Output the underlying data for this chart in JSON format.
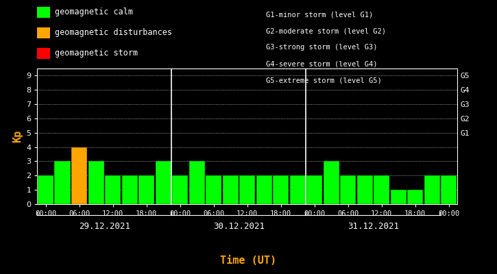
{
  "background_color": "#000000",
  "plot_bg_color": "#000000",
  "bar_values": [
    2,
    3,
    4,
    3,
    2,
    2,
    2,
    3,
    2,
    3,
    2,
    2,
    2,
    2,
    2,
    2,
    2,
    3,
    2,
    2,
    2,
    1,
    1,
    2,
    2
  ],
  "bar_colors": [
    "#00ff00",
    "#00ff00",
    "#ffa500",
    "#00ff00",
    "#00ff00",
    "#00ff00",
    "#00ff00",
    "#00ff00",
    "#00ff00",
    "#00ff00",
    "#00ff00",
    "#00ff00",
    "#00ff00",
    "#00ff00",
    "#00ff00",
    "#00ff00",
    "#00ff00",
    "#00ff00",
    "#00ff00",
    "#00ff00",
    "#00ff00",
    "#00ff00",
    "#00ff00",
    "#00ff00",
    "#00ff00"
  ],
  "ylim": [
    0,
    9.5
  ],
  "yticks": [
    0,
    1,
    2,
    3,
    4,
    5,
    6,
    7,
    8,
    9
  ],
  "ylabel": "Kp",
  "ylabel_color": "#ffa500",
  "xlabel": "Time (UT)",
  "xlabel_color": "#ffa500",
  "grid_color": "#ffffff",
  "tick_color": "#ffffff",
  "text_color": "#ffffff",
  "day_labels": [
    "29.12.2021",
    "30.12.2021",
    "31.12.2021"
  ],
  "day_dividers": [
    8,
    16
  ],
  "right_labels": [
    "G5",
    "G4",
    "G3",
    "G2",
    "G1"
  ],
  "right_label_yticks": [
    9,
    8,
    7,
    6,
    5
  ],
  "legend_items": [
    {
      "label": "geomagnetic calm",
      "color": "#00ff00"
    },
    {
      "label": "geomagnetic disturbances",
      "color": "#ffa500"
    },
    {
      "label": "geomagnetic storm",
      "color": "#ff0000"
    }
  ],
  "legend_right_text": [
    "G1-minor storm (level G1)",
    "G2-moderate storm (level G2)",
    "G3-strong storm (level G3)",
    "G4-severe storm (level G4)",
    "G5-extreme storm (level G5)"
  ],
  "font_family": "monospace"
}
